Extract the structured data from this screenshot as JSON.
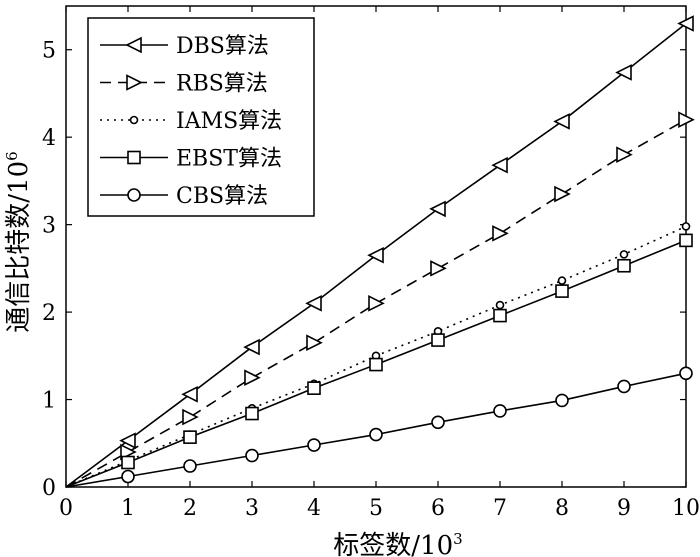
{
  "chart_data": {
    "type": "line",
    "xlabel": "标签数/10",
    "xlabel_sup": "3",
    "ylabel": "通信比特数/10",
    "ylabel_sup": "6",
    "xlim": [
      0,
      10
    ],
    "ylim": [
      0,
      5.5
    ],
    "xticks": [
      "0",
      "1",
      "2",
      "3",
      "4",
      "5",
      "6",
      "7",
      "8",
      "9",
      "10"
    ],
    "yticks": [
      "0",
      "1",
      "2",
      "3",
      "4",
      "5"
    ],
    "grid": false,
    "legend_position": "top-left",
    "x": [
      0,
      1,
      2,
      3,
      4,
      5,
      6,
      7,
      8,
      9,
      10
    ],
    "series": [
      {
        "name": "DBS算法",
        "marker": "triangle-left",
        "line_style": "solid",
        "values": [
          0,
          0.53,
          1.06,
          1.6,
          2.1,
          2.65,
          3.18,
          3.68,
          4.18,
          4.74,
          5.3
        ]
      },
      {
        "name": "RBS算法",
        "marker": "triangle-right",
        "line_style": "dashed",
        "values": [
          0,
          0.4,
          0.8,
          1.25,
          1.65,
          2.1,
          2.5,
          2.9,
          3.35,
          3.8,
          4.2
        ]
      },
      {
        "name": "IAMS算法",
        "marker": "small-circle",
        "line_style": "dotted",
        "values": [
          0,
          0.3,
          0.6,
          0.9,
          1.18,
          1.5,
          1.78,
          2.08,
          2.36,
          2.66,
          2.98
        ]
      },
      {
        "name": "EBST算法",
        "marker": "square",
        "line_style": "solid",
        "values": [
          0,
          0.28,
          0.57,
          0.84,
          1.13,
          1.4,
          1.68,
          1.96,
          2.24,
          2.53,
          2.82
        ]
      },
      {
        "name": "CBS算法",
        "marker": "circle",
        "line_style": "solid",
        "values": [
          0,
          0.12,
          0.24,
          0.36,
          0.48,
          0.6,
          0.74,
          0.87,
          0.99,
          1.15,
          1.3
        ]
      }
    ]
  }
}
